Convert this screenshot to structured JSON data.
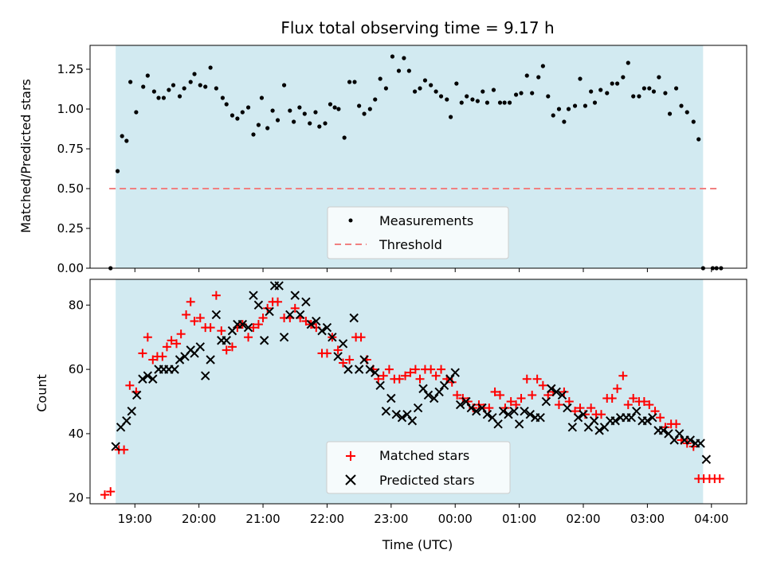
{
  "chart_data": [
    {
      "type": "scatter",
      "title": "Flux total observing time = 9.17 h",
      "xlabel": "",
      "ylabel": "Matched/Predicted stars",
      "ylim": [
        0,
        1.4
      ],
      "yticks": [
        "0.00",
        "0.25",
        "0.50",
        "0.75",
        "1.00",
        "1.25"
      ],
      "ytick_values": [
        0,
        0.25,
        0.5,
        0.75,
        1.0,
        1.25
      ],
      "xlim_hours": [
        18.3,
        28.55
      ],
      "shaded_span_hours": [
        18.7,
        27.87
      ],
      "shade_color": "#add8e6",
      "legend": {
        "placement": "lower center",
        "entries": [
          "Measurements",
          "Threshold"
        ]
      },
      "threshold": {
        "name": "Threshold",
        "y": 0.5,
        "x_hours": [
          18.6,
          28.13
        ],
        "color": "#f08080"
      },
      "series": [
        {
          "name": "Measurements",
          "color": "#000000",
          "x_hours": [
            18.62,
            18.73,
            18.8,
            18.87,
            18.93,
            19.02,
            19.13,
            19.2,
            19.3,
            19.37,
            19.45,
            19.53,
            19.6,
            19.7,
            19.77,
            19.87,
            19.93,
            20.02,
            20.1,
            20.18,
            20.27,
            20.37,
            20.43,
            20.52,
            20.6,
            20.68,
            20.77,
            20.85,
            20.93,
            20.98,
            21.07,
            21.15,
            21.23,
            21.33,
            21.42,
            21.48,
            21.57,
            21.65,
            21.73,
            21.82,
            21.88,
            21.97,
            22.05,
            22.12,
            22.18,
            22.27,
            22.35,
            22.43,
            22.5,
            22.58,
            22.67,
            22.75,
            22.83,
            22.92,
            23.02,
            23.12,
            23.2,
            23.28,
            23.37,
            23.45,
            23.53,
            23.62,
            23.7,
            23.78,
            23.87,
            23.93,
            24.02,
            24.1,
            24.18,
            24.27,
            24.35,
            24.43,
            24.5,
            24.6,
            24.7,
            24.77,
            24.85,
            24.95,
            25.03,
            25.12,
            25.2,
            25.3,
            25.37,
            25.45,
            25.53,
            25.62,
            25.7,
            25.77,
            25.87,
            25.95,
            26.03,
            26.12,
            26.18,
            26.27,
            26.37,
            26.45,
            26.53,
            26.62,
            26.7,
            26.78,
            26.87,
            26.95,
            27.03,
            27.1,
            27.18,
            27.28,
            27.35,
            27.45,
            27.53,
            27.62,
            27.72,
            27.8,
            27.87,
            28.02,
            28.08,
            28.15
          ],
          "y": [
            0.0,
            0.61,
            0.83,
            0.8,
            1.17,
            0.98,
            1.14,
            1.21,
            1.11,
            1.07,
            1.07,
            1.12,
            1.15,
            1.08,
            1.13,
            1.17,
            1.22,
            1.15,
            1.14,
            1.26,
            1.13,
            1.07,
            1.03,
            0.96,
            0.94,
            0.98,
            1.01,
            0.84,
            0.9,
            1.07,
            0.88,
            0.99,
            0.93,
            1.15,
            0.99,
            0.92,
            1.01,
            0.97,
            0.91,
            0.98,
            0.89,
            0.91,
            1.03,
            1.01,
            1.0,
            0.82,
            1.17,
            1.17,
            1.02,
            0.97,
            1.0,
            1.06,
            1.19,
            1.13,
            1.33,
            1.24,
            1.32,
            1.24,
            1.11,
            1.13,
            1.18,
            1.15,
            1.11,
            1.08,
            1.06,
            0.95,
            1.16,
            1.04,
            1.08,
            1.06,
            1.05,
            1.11,
            1.04,
            1.12,
            1.04,
            1.04,
            1.04,
            1.09,
            1.1,
            1.21,
            1.1,
            1.2,
            1.27,
            1.08,
            0.96,
            1.0,
            0.92,
            1.0,
            1.02,
            1.19,
            1.02,
            1.11,
            1.04,
            1.12,
            1.1,
            1.16,
            1.16,
            1.2,
            1.29,
            1.08,
            1.08,
            1.13,
            1.13,
            1.11,
            1.2,
            1.1,
            0.97,
            1.13,
            1.02,
            0.98,
            0.92,
            0.81,
            0.0,
            0.0,
            0.0,
            0.0
          ]
        }
      ]
    },
    {
      "type": "scatter",
      "title": "",
      "xlabel": "Time (UTC)",
      "ylabel": "Count",
      "ylim": [
        18.2,
        88
      ],
      "yticks": [
        "20",
        "40",
        "60",
        "80"
      ],
      "ytick_values": [
        20,
        40,
        60,
        80
      ],
      "xlim_hours": [
        18.3,
        28.55
      ],
      "xticks": [
        "19:00",
        "20:00",
        "21:00",
        "22:00",
        "23:00",
        "00:00",
        "01:00",
        "02:00",
        "03:00",
        "04:00"
      ],
      "xtick_hours": [
        19,
        20,
        21,
        22,
        23,
        24,
        25,
        26,
        27,
        28
      ],
      "shaded_span_hours": [
        18.7,
        27.87
      ],
      "legend": {
        "placement": "lower center",
        "entries": [
          "Matched stars",
          "Predicted stars"
        ]
      },
      "series": [
        {
          "name": "Matched stars",
          "marker": "plus",
          "color": "#ff0000",
          "x_hours": [
            18.53,
            18.62,
            18.75,
            18.83,
            18.92,
            19.02,
            19.12,
            19.2,
            19.28,
            19.35,
            19.43,
            19.5,
            19.57,
            19.65,
            19.72,
            19.8,
            19.87,
            19.93,
            20.02,
            20.1,
            20.18,
            20.27,
            20.35,
            20.43,
            20.52,
            20.6,
            20.68,
            20.77,
            20.85,
            20.93,
            21.0,
            21.07,
            21.15,
            21.23,
            21.33,
            21.42,
            21.5,
            21.58,
            21.67,
            21.75,
            21.83,
            21.92,
            22.0,
            22.08,
            22.17,
            22.25,
            22.35,
            22.45,
            22.53,
            22.62,
            22.72,
            22.8,
            22.88,
            22.97,
            23.05,
            23.13,
            23.22,
            23.3,
            23.38,
            23.45,
            23.53,
            23.62,
            23.7,
            23.78,
            23.87,
            23.95,
            24.03,
            24.12,
            24.2,
            24.28,
            24.37,
            24.45,
            24.53,
            24.62,
            24.7,
            24.78,
            24.87,
            24.95,
            25.03,
            25.12,
            25.2,
            25.28,
            25.37,
            25.45,
            25.53,
            25.62,
            25.7,
            25.78,
            25.87,
            25.95,
            26.03,
            26.12,
            26.2,
            26.28,
            26.37,
            26.45,
            26.53,
            26.62,
            26.7,
            26.78,
            26.87,
            26.95,
            27.03,
            27.12,
            27.2,
            27.28,
            27.37,
            27.45,
            27.53,
            27.62,
            27.72,
            27.8,
            27.88,
            27.97,
            28.05,
            28.13
          ],
          "y": [
            21,
            22,
            35,
            35,
            55,
            53,
            65,
            70,
            63,
            64,
            64,
            67,
            69,
            68,
            71,
            77,
            81,
            75,
            76,
            73,
            73,
            83,
            72,
            66,
            67,
            73,
            74,
            70,
            73,
            74,
            76,
            79,
            81,
            81,
            76,
            76,
            79,
            76,
            75,
            74,
            73,
            65,
            65,
            70,
            66,
            62,
            63,
            70,
            70,
            63,
            60,
            57,
            58,
            60,
            57,
            57,
            58,
            59,
            60,
            57,
            60,
            60,
            58,
            60,
            57,
            56,
            52,
            51,
            50,
            48,
            49,
            48,
            48,
            53,
            52,
            48,
            50,
            49,
            51,
            57,
            52,
            57,
            55,
            52,
            53,
            49,
            53,
            50,
            47,
            48,
            46,
            48,
            46,
            46,
            51,
            51,
            54,
            58,
            49,
            51,
            50,
            50,
            49,
            47,
            45,
            42,
            43,
            43,
            38,
            37,
            36,
            26,
            26,
            26,
            26,
            26
          ]
        },
        {
          "name": "Predicted stars",
          "marker": "x",
          "color": "#000000",
          "x_hours": [
            18.7,
            18.78,
            18.87,
            18.95,
            19.03,
            19.12,
            19.2,
            19.28,
            19.37,
            19.45,
            19.53,
            19.62,
            19.7,
            19.78,
            19.87,
            19.93,
            20.02,
            20.1,
            20.18,
            20.27,
            20.35,
            20.43,
            20.52,
            20.6,
            20.68,
            20.77,
            20.85,
            20.93,
            21.02,
            21.1,
            21.18,
            21.25,
            21.33,
            21.42,
            21.5,
            21.58,
            21.67,
            21.75,
            21.83,
            21.92,
            22.0,
            22.08,
            22.17,
            22.25,
            22.33,
            22.42,
            22.5,
            22.58,
            22.67,
            22.75,
            22.83,
            22.92,
            23.0,
            23.08,
            23.17,
            23.25,
            23.33,
            23.42,
            23.5,
            23.58,
            23.67,
            23.75,
            23.83,
            23.92,
            24.0,
            24.08,
            24.17,
            24.25,
            24.33,
            24.42,
            24.5,
            24.58,
            24.67,
            24.75,
            24.83,
            24.92,
            25.0,
            25.08,
            25.17,
            25.25,
            25.33,
            25.42,
            25.5,
            25.58,
            25.67,
            25.75,
            25.83,
            25.92,
            26.0,
            26.08,
            26.17,
            26.25,
            26.33,
            26.42,
            26.5,
            26.58,
            26.67,
            26.75,
            26.83,
            26.92,
            27.0,
            27.08,
            27.17,
            27.25,
            27.33,
            27.42,
            27.5,
            27.58,
            27.67,
            27.75,
            27.83,
            27.92
          ],
          "y": [
            36,
            42,
            44,
            47,
            52,
            57,
            58,
            57,
            60,
            60,
            60,
            60,
            63,
            64,
            66,
            65,
            67,
            58,
            63,
            77,
            69,
            69,
            72,
            74,
            74,
            73,
            83,
            80,
            69,
            78,
            86,
            86,
            70,
            77,
            83,
            77,
            81,
            74,
            75,
            72,
            73,
            70,
            64,
            68,
            60,
            76,
            60,
            63,
            60,
            59,
            55,
            47,
            51,
            46,
            45,
            46,
            44,
            48,
            54,
            52,
            51,
            53,
            55,
            57,
            59,
            49,
            50,
            48,
            47,
            48,
            46,
            45,
            43,
            47,
            46,
            47,
            43,
            47,
            46,
            45,
            45,
            50,
            54,
            53,
            52,
            48,
            42,
            45,
            46,
            42,
            44,
            41,
            42,
            44,
            44,
            45,
            45,
            45,
            47,
            44,
            44,
            45,
            41,
            41,
            40,
            38,
            40,
            38,
            38,
            37,
            37,
            32
          ]
        }
      ]
    }
  ]
}
